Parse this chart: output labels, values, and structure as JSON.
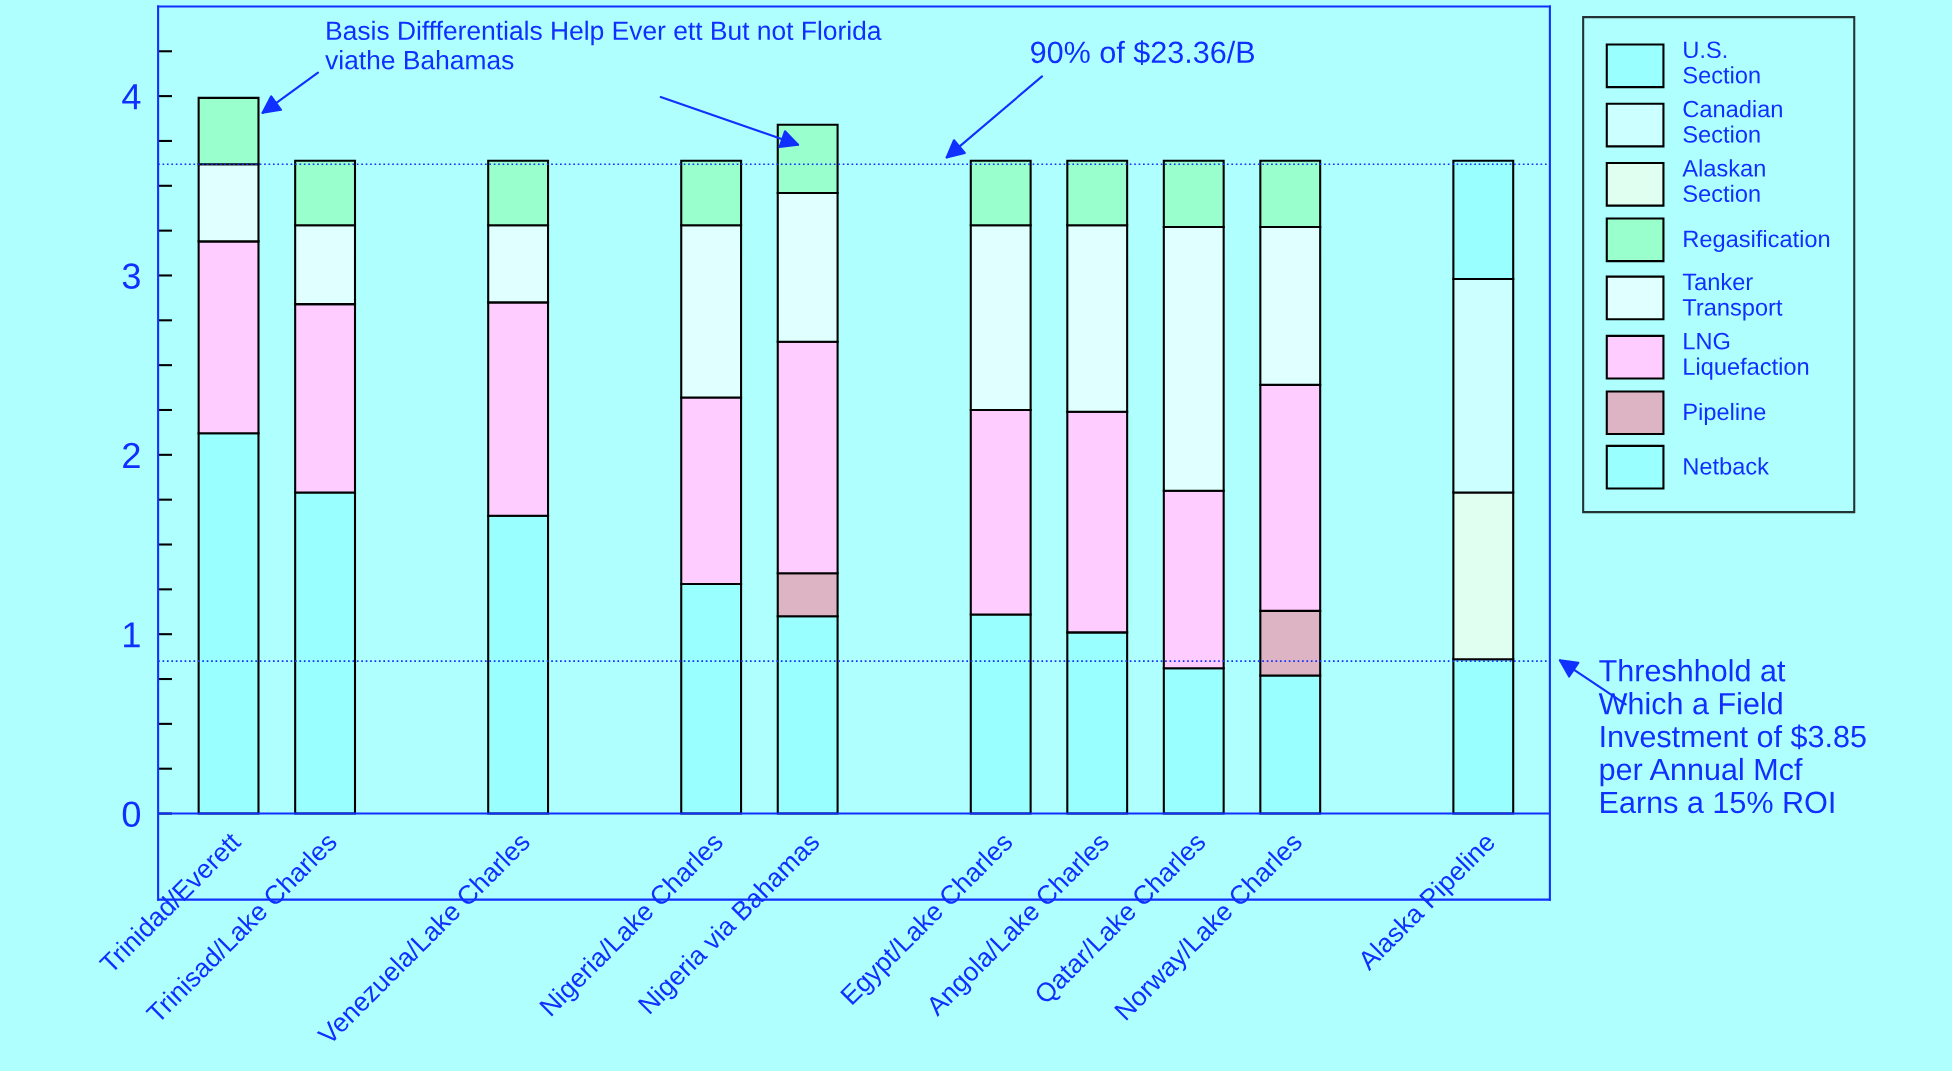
{
  "chart_data": {
    "type": "bar",
    "stacked": true,
    "categories": [
      "Trinidad/Everett",
      "Trinisad/Lake Charles",
      null,
      "Venezuela/Lake Charles",
      null,
      "Nigeria/Lake Charles",
      "Nigeria via Bahamas",
      null,
      "Egypt/Lake Charles",
      "Angola/Lake Charles",
      "Qatar/Lake Charles",
      "Norway/Lake Charles",
      null,
      "Alaska Pipeline"
    ],
    "series": [
      {
        "name": "Netback",
        "color": "#99ffff",
        "values": [
          2.12,
          1.79,
          null,
          1.66,
          null,
          1.28,
          1.1,
          null,
          1.11,
          1.01,
          0.81,
          0.77,
          null,
          0.86
        ]
      },
      {
        "name": "Pipeline",
        "color": "#ddb4c4",
        "values": [
          null,
          null,
          null,
          null,
          null,
          null,
          0.24,
          null,
          null,
          null,
          null,
          0.36,
          null,
          null
        ]
      },
      {
        "name": "LNG\nLiquefaction",
        "color": "#ffccff",
        "values": [
          1.07,
          1.05,
          null,
          1.19,
          null,
          1.04,
          1.29,
          null,
          1.14,
          1.23,
          0.99,
          1.26,
          null,
          null
        ]
      },
      {
        "name": "Tanker\nTransport",
        "color": "#e0ffff",
        "values": [
          0.43,
          0.44,
          null,
          0.43,
          null,
          0.96,
          0.83,
          null,
          1.03,
          1.04,
          1.47,
          0.88,
          null,
          null
        ]
      },
      {
        "name": "Regasification",
        "color": "#99ffcc",
        "values": [
          0.37,
          0.36,
          null,
          0.36,
          null,
          0.36,
          0.38,
          null,
          0.36,
          0.36,
          0.37,
          0.37,
          null,
          null
        ]
      },
      {
        "name": "Alaskan\nSection",
        "color": "#e0fff0",
        "values": [
          null,
          null,
          null,
          null,
          null,
          null,
          null,
          null,
          null,
          null,
          null,
          null,
          null,
          0.93
        ]
      },
      {
        "name": "Canadian\nSection",
        "color": "#ccffff",
        "values": [
          null,
          null,
          null,
          null,
          null,
          null,
          null,
          null,
          null,
          null,
          null,
          null,
          null,
          1.19
        ]
      },
      {
        "name": "U.S.\nSection",
        "color": "#99ffff",
        "values": [
          null,
          null,
          null,
          null,
          null,
          null,
          null,
          null,
          null,
          null,
          null,
          null,
          null,
          0.66
        ]
      }
    ],
    "ylim": [
      -0.48,
      4.5
    ],
    "yticks": [
      0,
      {
        "value": 0.25,
        "label": null
      },
      {
        "value": 0.5,
        "label": null
      },
      {
        "value": 0.75,
        "label": null
      },
      1,
      {
        "value": 1.25,
        "label": null
      },
      {
        "value": 1.5,
        "label": null
      },
      {
        "value": 1.75,
        "label": null
      },
      2,
      {
        "value": 2.25,
        "label": null
      },
      {
        "value": 2.5,
        "label": null
      },
      {
        "value": 2.75,
        "label": null
      },
      3,
      {
        "value": 3.25,
        "label": null
      },
      {
        "value": 3.5,
        "label": null
      },
      {
        "value": 3.75,
        "label": null
      },
      4,
      {
        "value": 4.25,
        "label": null
      }
    ],
    "ref_lines": [
      {
        "axis": "y",
        "value": 3.62,
        "color": "#1030ff",
        "line_style": "dotted"
      },
      {
        "axis": "y",
        "value": 0.85,
        "color": "#1030ff",
        "line_style": "dotted"
      },
      {
        "axis": "y",
        "value": 0,
        "color": "#1030ff",
        "line_style": "solid"
      }
    ],
    "annotations": [
      "Basis Diffferentials Help Ever ett But not Florida\nviathe Bahamas",
      "90% of $23.36/B",
      "Threshhold at\nWhich a Field\nInvestment of $3.85\nper Annual Mcf\nEarns a 15% ROI"
    ],
    "grid": false,
    "legend": "right"
  }
}
